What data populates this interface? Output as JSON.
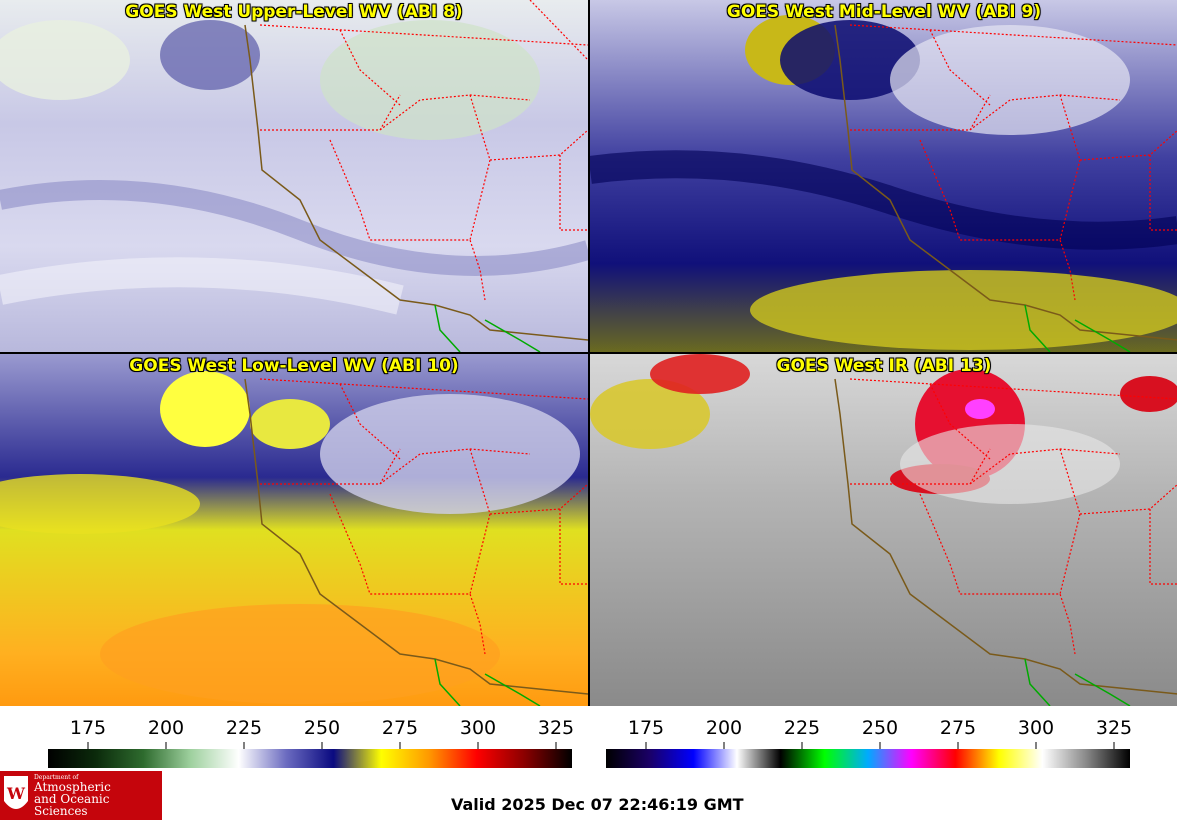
{
  "panels": [
    {
      "id": "p1",
      "title": "GOES West Upper-Level WV (ABI 8)",
      "scheme": "upper"
    },
    {
      "id": "p2",
      "title": "GOES West Mid-Level WV (ABI 9)",
      "scheme": "mid"
    },
    {
      "id": "p3",
      "title": "GOES West Low-Level WV (ABI 10)",
      "scheme": "low"
    },
    {
      "id": "p4",
      "title": "GOES West IR (ABI 13)",
      "scheme": "ir"
    }
  ],
  "colorbars": [
    {
      "ticks": [
        "175",
        "200",
        "225",
        "250",
        "275",
        "300",
        "325"
      ],
      "stops": [
        "#000000",
        "#0b2a0b",
        "#2e6b2e",
        "#9fd19f",
        "#ffffff",
        "#6b6bc0",
        "#0a0a80",
        "#ffff00",
        "#ff9900",
        "#ff0000",
        "#8b0000",
        "#000000"
      ]
    },
    {
      "ticks": [
        "175",
        "200",
        "225",
        "250",
        "275",
        "300",
        "325"
      ],
      "stops": [
        "#000000",
        "#1a0066",
        "#0000ff",
        "#ffffff",
        "#000000",
        "#00ff00",
        "#00aaff",
        "#ff00ff",
        "#ff0000",
        "#ffff00",
        "#ffffff",
        "#888888",
        "#000000"
      ]
    }
  ],
  "logo": {
    "line1": "Department of",
    "line2": "Atmospheric",
    "line3": "and Oceanic Sciences"
  },
  "valid_time": "Valid 2025 Dec 07 22:46:19 GMT",
  "colors": {
    "state_border": "#ff0000",
    "coast": "#7a5a1a",
    "mexico_border": "#00aa00",
    "title": "#ffff00"
  }
}
